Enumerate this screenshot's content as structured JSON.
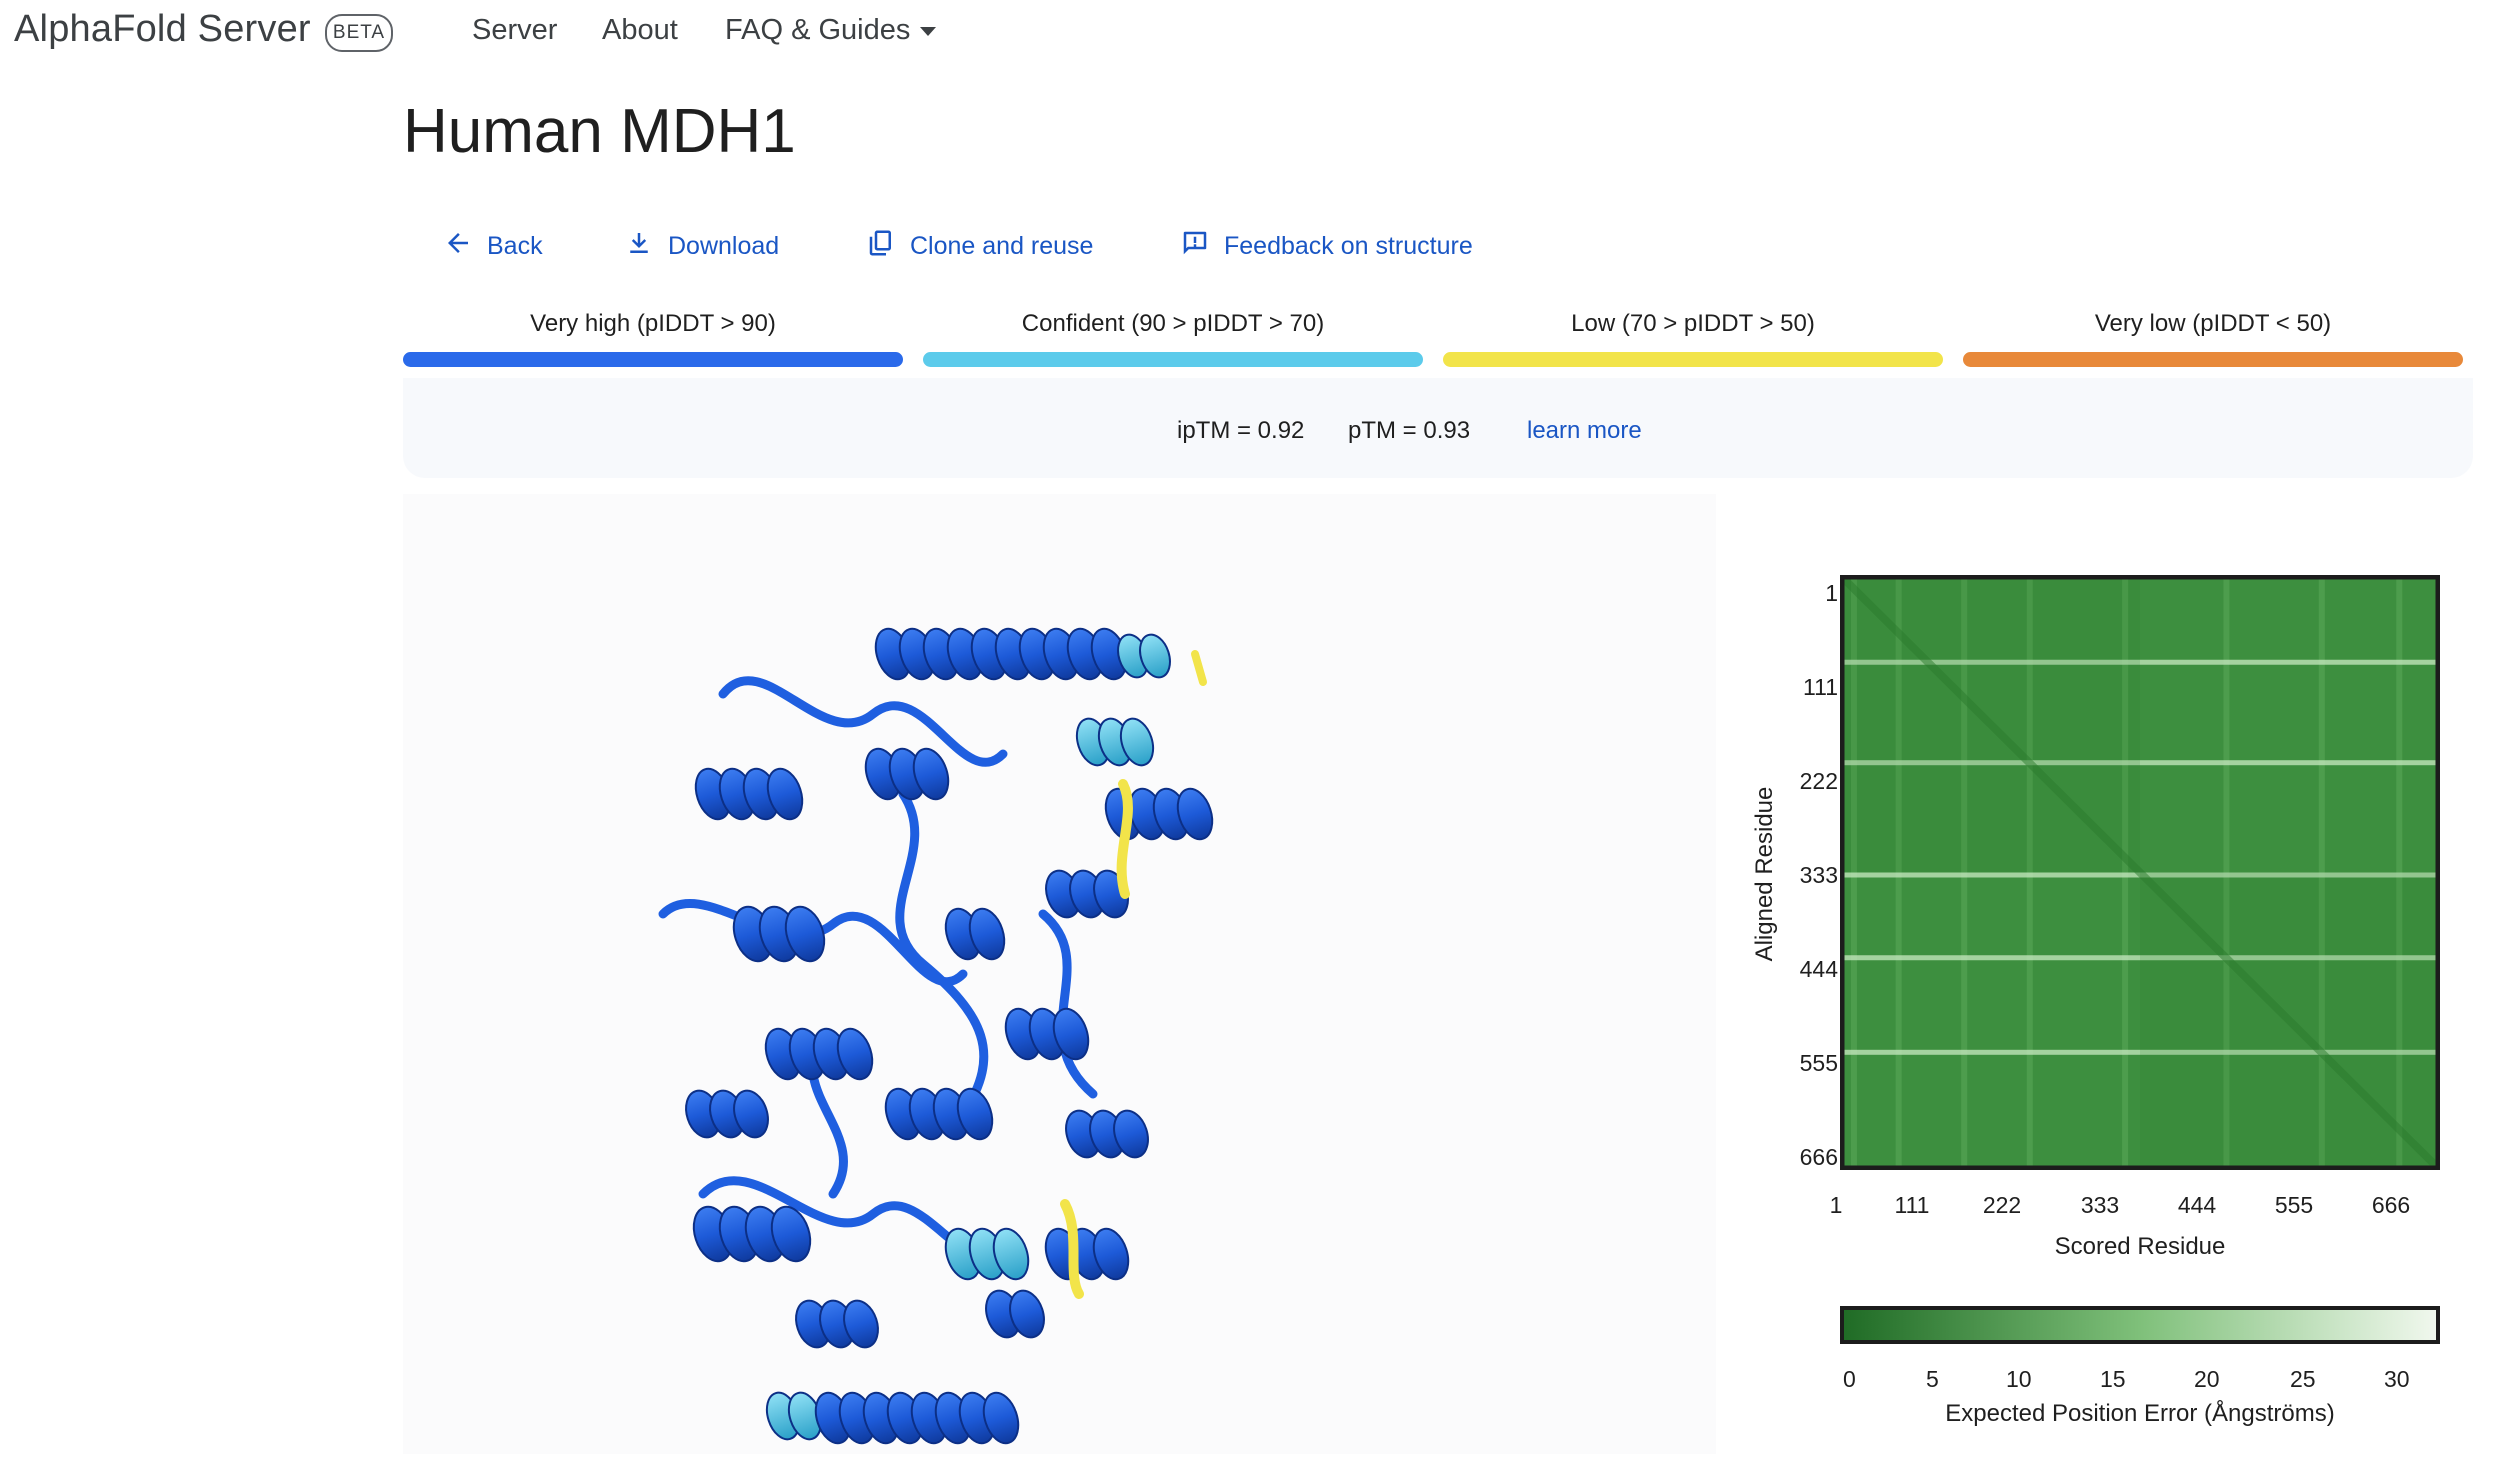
{
  "header": {
    "brand": "AlphaFold Server",
    "badge": "BETA",
    "nav": {
      "server": "Server",
      "about": "About",
      "faq": "FAQ & Guides"
    }
  },
  "page": {
    "title": "Human MDH1"
  },
  "actions": {
    "back": "Back",
    "download": "Download",
    "clone": "Clone and reuse",
    "feedback": "Feedback on structure"
  },
  "confidence_legend": {
    "items": [
      {
        "label": "Very high (pIDDT > 90)",
        "color": "#2a6aea"
      },
      {
        "label": "Confident (90 > pIDDT > 70)",
        "color": "#5ccbeb"
      },
      {
        "label": "Low (70 > pIDDT > 50)",
        "color": "#f2e44a"
      },
      {
        "label": "Very low (pIDDT < 50)",
        "color": "#e8893a"
      }
    ]
  },
  "scores": {
    "iptm": "ipTM = 0.92",
    "ptm": "pTM = 0.93",
    "learn_more": "learn more"
  },
  "pae": {
    "ylabel": "Aligned Residue",
    "xlabel": "Scored Residue",
    "ticks": [
      "1",
      "111",
      "222",
      "333",
      "444",
      "555",
      "666"
    ],
    "colorbar_ticks": [
      "0",
      "5",
      "10",
      "15",
      "20",
      "25",
      "30"
    ],
    "colorbar_label": "Expected Position Error (Ångströms)",
    "base_color": "#3d8f3f"
  }
}
